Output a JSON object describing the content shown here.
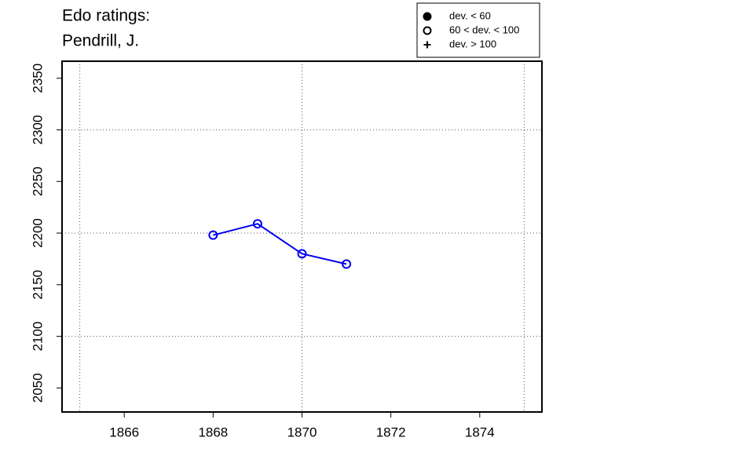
{
  "chart_data": {
    "type": "line",
    "title": [
      "Edo ratings:",
      "Pendrill, J."
    ],
    "x": [
      1868,
      1869,
      1870,
      1871
    ],
    "series": [
      {
        "color": "#0000ee",
        "marker": "open-circle",
        "values": [
          2198,
          2209,
          2180,
          2170
        ]
      }
    ],
    "xlim": [
      1864.6,
      1875.4
    ],
    "ylim": [
      2026.7,
      2366.5
    ],
    "xticks": [
      1866,
      1868,
      1870,
      1872,
      1874
    ],
    "yticks": [
      2050,
      2100,
      2150,
      2200,
      2250,
      2300,
      2350
    ],
    "xgrid": [
      1865,
      1870,
      1875
    ],
    "ygrid": [
      2100,
      2200,
      2300
    ],
    "legend": [
      {
        "label": "dev. < 60",
        "symbol": "filled-circle"
      },
      {
        "label": "60 < dev. < 100",
        "symbol": "open-circle"
      },
      {
        "label": "dev. > 100",
        "symbol": "plus"
      }
    ]
  }
}
